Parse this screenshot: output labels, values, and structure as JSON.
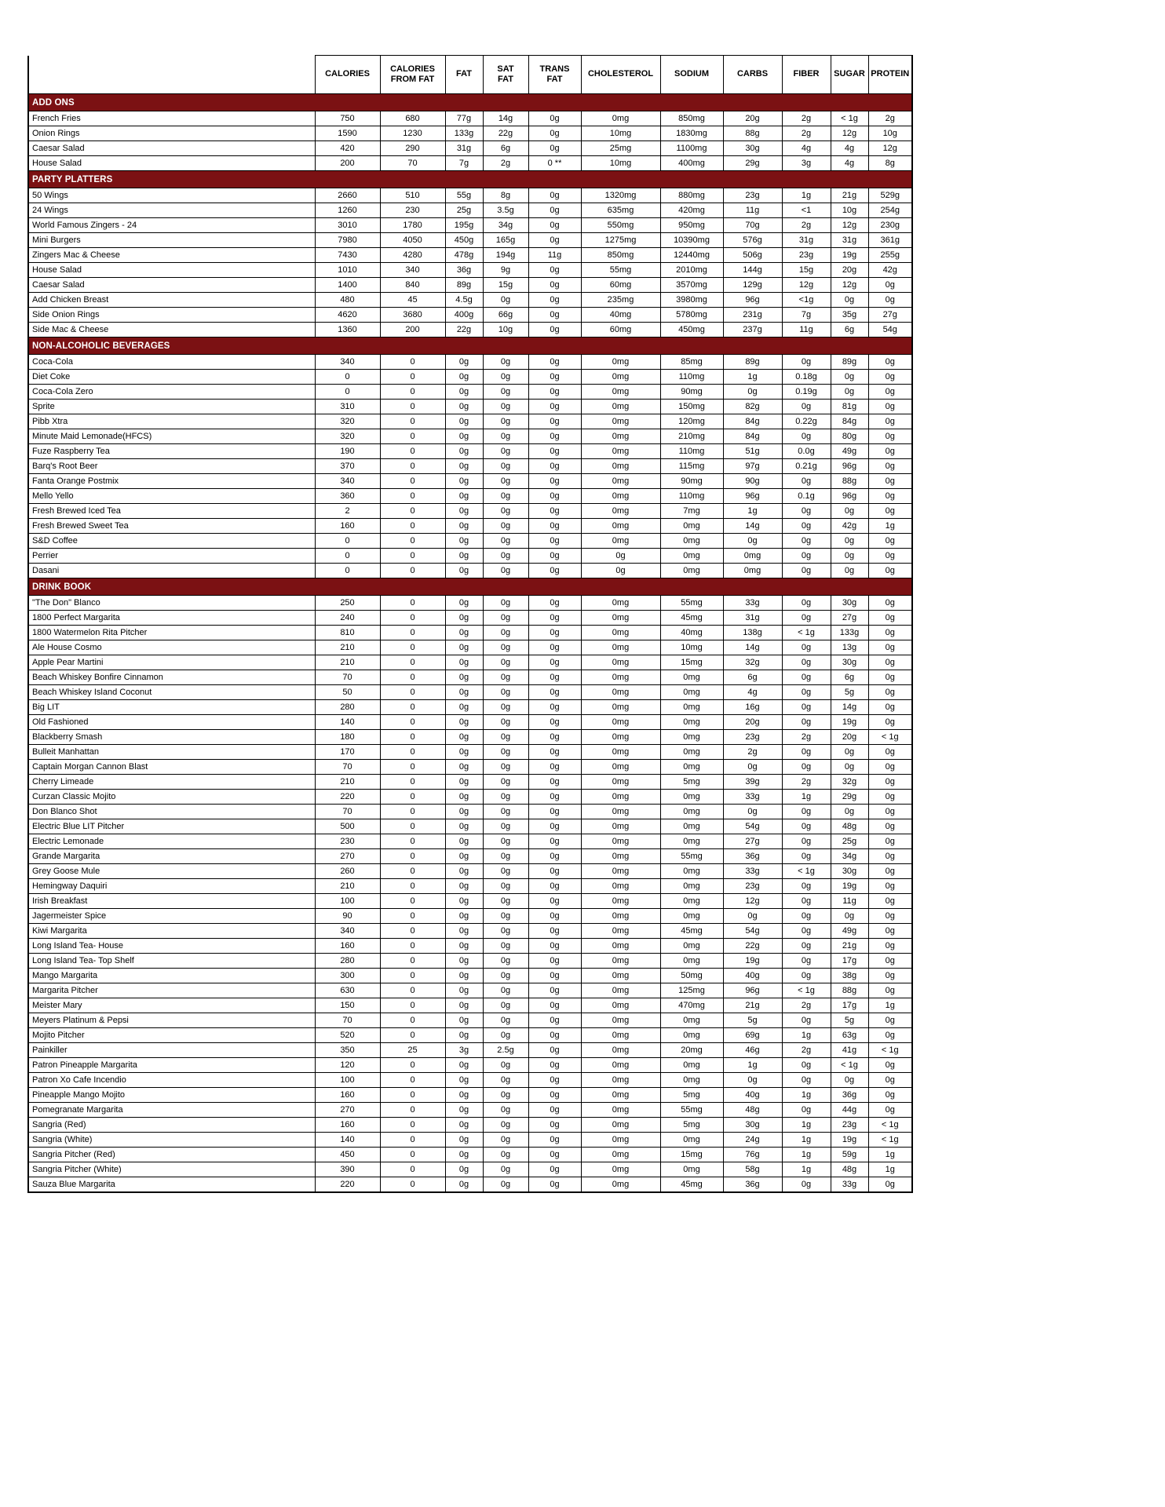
{
  "document": {
    "kind": "restaurant-nutrition-table"
  },
  "colors": {
    "section_banner": "#7b1113",
    "banner_text": "#ffffff",
    "grid": "#000000",
    "background": "#ffffff"
  },
  "table": {
    "columns": [
      "CALORIES",
      "CALORIES\nFROM FAT",
      "FAT",
      "SAT\nFAT",
      "TRANS\nFAT",
      "CHOLESTEROL",
      "SODIUM",
      "CARBS",
      "FIBER",
      "SUGAR",
      "PROTEIN"
    ],
    "sections": [
      {
        "title": "ADD ONS",
        "rows": [
          [
            "French Fries",
            "750",
            "680",
            "77g",
            "14g",
            "0g",
            "0mg",
            "850mg",
            "20g",
            "2g",
            "< 1g",
            "2g"
          ],
          [
            "Onion Rings",
            "1590",
            "1230",
            "133g",
            "22g",
            "0g",
            "10mg",
            "1830mg",
            "88g",
            "2g",
            "12g",
            "10g"
          ],
          [
            "Caesar Salad",
            "420",
            "290",
            "31g",
            "6g",
            "0g",
            "25mg",
            "1100mg",
            "30g",
            "4g",
            "4g",
            "12g"
          ],
          [
            "House Salad",
            "200",
            "70",
            "7g",
            "2g",
            "0 **",
            "10mg",
            "400mg",
            "29g",
            "3g",
            "4g",
            "8g"
          ]
        ]
      },
      {
        "title": "PARTY PLATTERS",
        "rows": [
          [
            "50 Wings",
            "2660",
            "510",
            "55g",
            "8g",
            "0g",
            "1320mg",
            "880mg",
            "23g",
            "1g",
            "21g",
            "529g"
          ],
          [
            "24 Wings",
            "1260",
            "230",
            "25g",
            "3.5g",
            "0g",
            "635mg",
            "420mg",
            "11g",
            "<1",
            "10g",
            "254g"
          ],
          [
            "World Famous Zingers - 24",
            "3010",
            "1780",
            "195g",
            "34g",
            "0g",
            "550mg",
            "950mg",
            "70g",
            "2g",
            "12g",
            "230g"
          ],
          [
            "Mini Burgers",
            "7980",
            "4050",
            "450g",
            "165g",
            "0g",
            "1275mg",
            "10390mg",
            "576g",
            "31g",
            "31g",
            "361g"
          ],
          [
            "Zingers Mac & Cheese",
            "7430",
            "4280",
            "478g",
            "194g",
            "11g",
            "850mg",
            "12440mg",
            "506g",
            "23g",
            "19g",
            "255g"
          ],
          [
            "House Salad",
            "1010",
            "340",
            "36g",
            "9g",
            "0g",
            "55mg",
            "2010mg",
            "144g",
            "15g",
            "20g",
            "42g"
          ],
          [
            "Caesar Salad",
            "1400",
            "840",
            "89g",
            "15g",
            "0g",
            "60mg",
            "3570mg",
            "129g",
            "12g",
            "12g",
            "0g"
          ],
          [
            "Add Chicken Breast",
            "480",
            "45",
            "4.5g",
            "0g",
            "0g",
            "235mg",
            "3980mg",
            "96g",
            "<1g",
            "0g",
            "0g"
          ],
          [
            "Side Onion Rings",
            "4620",
            "3680",
            "400g",
            "66g",
            "0g",
            "40mg",
            "5780mg",
            "231g",
            "7g",
            "35g",
            "27g"
          ],
          [
            "Side Mac & Cheese",
            "1360",
            "200",
            "22g",
            "10g",
            "0g",
            "60mg",
            "450mg",
            "237g",
            "11g",
            "6g",
            "54g"
          ]
        ]
      },
      {
        "title": "NON-ALCOHOLIC BEVERAGES",
        "rows": [
          [
            "Coca-Cola",
            "340",
            "0",
            "0g",
            "0g",
            "0g",
            "0mg",
            "85mg",
            "89g",
            "0g",
            "89g",
            "0g"
          ],
          [
            "Diet Coke",
            "0",
            "0",
            "0g",
            "0g",
            "0g",
            "0mg",
            "110mg",
            "1g",
            "0.18g",
            "0g",
            "0g"
          ],
          [
            "Coca-Cola Zero",
            "0",
            "0",
            "0g",
            "0g",
            "0g",
            "0mg",
            "90mg",
            "0g",
            "0.19g",
            "0g",
            "0g"
          ],
          [
            "Sprite",
            "310",
            "0",
            "0g",
            "0g",
            "0g",
            "0mg",
            "150mg",
            "82g",
            "0g",
            "81g",
            "0g"
          ],
          [
            "Pibb Xtra",
            "320",
            "0",
            "0g",
            "0g",
            "0g",
            "0mg",
            "120mg",
            "84g",
            "0.22g",
            "84g",
            "0g"
          ],
          [
            "Minute Maid Lemonade(HFCS)",
            "320",
            "0",
            "0g",
            "0g",
            "0g",
            "0mg",
            "210mg",
            "84g",
            "0g",
            "80g",
            "0g"
          ],
          [
            "Fuze Raspberry Tea",
            "190",
            "0",
            "0g",
            "0g",
            "0g",
            "0mg",
            "110mg",
            "51g",
            "0.0g",
            "49g",
            "0g"
          ],
          [
            "Barq's Root Beer",
            "370",
            "0",
            "0g",
            "0g",
            "0g",
            "0mg",
            "115mg",
            "97g",
            "0.21g",
            "96g",
            "0g"
          ],
          [
            "Fanta Orange Postmix",
            "340",
            "0",
            "0g",
            "0g",
            "0g",
            "0mg",
            "90mg",
            "90g",
            "0g",
            "88g",
            "0g"
          ],
          [
            "Mello Yello",
            "360",
            "0",
            "0g",
            "0g",
            "0g",
            "0mg",
            "110mg",
            "96g",
            "0.1g",
            "96g",
            "0g"
          ],
          [
            "Fresh Brewed Iced Tea",
            "2",
            "0",
            "0g",
            "0g",
            "0g",
            "0mg",
            "7mg",
            "1g",
            "0g",
            "0g",
            "0g"
          ],
          [
            "Fresh Brewed Sweet Tea",
            "160",
            "0",
            "0g",
            "0g",
            "0g",
            "0mg",
            "0mg",
            "14g",
            "0g",
            "42g",
            "1g"
          ],
          [
            "S&D Coffee",
            "0",
            "0",
            "0g",
            "0g",
            "0g",
            "0mg",
            "0mg",
            "0g",
            "0g",
            "0g",
            "0g"
          ],
          [
            "Perrier",
            "0",
            "0",
            "0g",
            "0g",
            "0g",
            "0g",
            "0mg",
            "0mg",
            "0g",
            "0g",
            "0g"
          ],
          [
            "Dasani",
            "0",
            "0",
            "0g",
            "0g",
            "0g",
            "0g",
            "0mg",
            "0mg",
            "0g",
            "0g",
            "0g"
          ]
        ]
      },
      {
        "title": "DRINK BOOK",
        "rows": [
          [
            "\"The Don\" Blanco",
            "250",
            "0",
            "0g",
            "0g",
            "0g",
            "0mg",
            "55mg",
            "33g",
            "0g",
            "30g",
            "0g"
          ],
          [
            "1800 Perfect Margarita",
            "240",
            "0",
            "0g",
            "0g",
            "0g",
            "0mg",
            "45mg",
            "31g",
            "0g",
            "27g",
            "0g"
          ],
          [
            "1800 Watermelon Rita Pitcher",
            "810",
            "0",
            "0g",
            "0g",
            "0g",
            "0mg",
            "40mg",
            "138g",
            "< 1g",
            "133g",
            "0g"
          ],
          [
            "Ale House Cosmo",
            "210",
            "0",
            "0g",
            "0g",
            "0g",
            "0mg",
            "10mg",
            "14g",
            "0g",
            "13g",
            "0g"
          ],
          [
            "Apple Pear Martini",
            "210",
            "0",
            "0g",
            "0g",
            "0g",
            "0mg",
            "15mg",
            "32g",
            "0g",
            "30g",
            "0g"
          ],
          [
            "Beach Whiskey Bonfire Cinnamon",
            "70",
            "0",
            "0g",
            "0g",
            "0g",
            "0mg",
            "0mg",
            "6g",
            "0g",
            "6g",
            "0g"
          ],
          [
            "Beach Whiskey Island Coconut",
            "50",
            "0",
            "0g",
            "0g",
            "0g",
            "0mg",
            "0mg",
            "4g",
            "0g",
            "5g",
            "0g"
          ],
          [
            "Big LIT",
            "280",
            "0",
            "0g",
            "0g",
            "0g",
            "0mg",
            "0mg",
            "16g",
            "0g",
            "14g",
            "0g"
          ],
          [
            "Old Fashioned",
            "140",
            "0",
            "0g",
            "0g",
            "0g",
            "0mg",
            "0mg",
            "20g",
            "0g",
            "19g",
            "0g"
          ],
          [
            "Blackberry Smash",
            "180",
            "0",
            "0g",
            "0g",
            "0g",
            "0mg",
            "0mg",
            "23g",
            "2g",
            "20g",
            "< 1g"
          ],
          [
            "Bulleit Manhattan",
            "170",
            "0",
            "0g",
            "0g",
            "0g",
            "0mg",
            "0mg",
            "2g",
            "0g",
            "0g",
            "0g"
          ],
          [
            "Captain Morgan Cannon Blast",
            "70",
            "0",
            "0g",
            "0g",
            "0g",
            "0mg",
            "0mg",
            "0g",
            "0g",
            "0g",
            "0g"
          ],
          [
            "Cherry Limeade",
            "210",
            "0",
            "0g",
            "0g",
            "0g",
            "0mg",
            "5mg",
            "39g",
            "2g",
            "32g",
            "0g"
          ],
          [
            "Curzan Classic Mojito",
            "220",
            "0",
            "0g",
            "0g",
            "0g",
            "0mg",
            "0mg",
            "33g",
            "1g",
            "29g",
            "0g"
          ],
          [
            "Don Blanco Shot",
            "70",
            "0",
            "0g",
            "0g",
            "0g",
            "0mg",
            "0mg",
            "0g",
            "0g",
            "0g",
            "0g"
          ],
          [
            "Electric Blue LIT Pitcher",
            "500",
            "0",
            "0g",
            "0g",
            "0g",
            "0mg",
            "0mg",
            "54g",
            "0g",
            "48g",
            "0g"
          ],
          [
            "Electric Lemonade",
            "230",
            "0",
            "0g",
            "0g",
            "0g",
            "0mg",
            "0mg",
            "27g",
            "0g",
            "25g",
            "0g"
          ],
          [
            "Grande Margarita",
            "270",
            "0",
            "0g",
            "0g",
            "0g",
            "0mg",
            "55mg",
            "36g",
            "0g",
            "34g",
            "0g"
          ],
          [
            "Grey Goose Mule",
            "260",
            "0",
            "0g",
            "0g",
            "0g",
            "0mg",
            "0mg",
            "33g",
            "< 1g",
            "30g",
            "0g"
          ],
          [
            "Hemingway Daquiri",
            "210",
            "0",
            "0g",
            "0g",
            "0g",
            "0mg",
            "0mg",
            "23g",
            "0g",
            "19g",
            "0g"
          ],
          [
            "Irish Breakfast",
            "100",
            "0",
            "0g",
            "0g",
            "0g",
            "0mg",
            "0mg",
            "12g",
            "0g",
            "11g",
            "0g"
          ],
          [
            "Jagermeister Spice",
            "90",
            "0",
            "0g",
            "0g",
            "0g",
            "0mg",
            "0mg",
            "0g",
            "0g",
            "0g",
            "0g"
          ],
          [
            "Kiwi Margarita",
            "340",
            "0",
            "0g",
            "0g",
            "0g",
            "0mg",
            "45mg",
            "54g",
            "0g",
            "49g",
            "0g"
          ],
          [
            "Long Island Tea- House",
            "160",
            "0",
            "0g",
            "0g",
            "0g",
            "0mg",
            "0mg",
            "22g",
            "0g",
            "21g",
            "0g"
          ],
          [
            "Long Island Tea- Top Shelf",
            "280",
            "0",
            "0g",
            "0g",
            "0g",
            "0mg",
            "0mg",
            "19g",
            "0g",
            "17g",
            "0g"
          ],
          [
            "Mango Margarita",
            "300",
            "0",
            "0g",
            "0g",
            "0g",
            "0mg",
            "50mg",
            "40g",
            "0g",
            "38g",
            "0g"
          ],
          [
            "Margarita Pitcher",
            "630",
            "0",
            "0g",
            "0g",
            "0g",
            "0mg",
            "125mg",
            "96g",
            "< 1g",
            "88g",
            "0g"
          ],
          [
            "Meister Mary",
            "150",
            "0",
            "0g",
            "0g",
            "0g",
            "0mg",
            "470mg",
            "21g",
            "2g",
            "17g",
            "1g"
          ],
          [
            "Meyers Platinum & Pepsi",
            "70",
            "0",
            "0g",
            "0g",
            "0g",
            "0mg",
            "0mg",
            "5g",
            "0g",
            "5g",
            "0g"
          ],
          [
            "Mojito Pitcher",
            "520",
            "0",
            "0g",
            "0g",
            "0g",
            "0mg",
            "0mg",
            "69g",
            "1g",
            "63g",
            "0g"
          ],
          [
            "Painkiller",
            "350",
            "25",
            "3g",
            "2.5g",
            "0g",
            "0mg",
            "20mg",
            "46g",
            "2g",
            "41g",
            "< 1g"
          ],
          [
            "Patron Pineapple Margarita",
            "120",
            "0",
            "0g",
            "0g",
            "0g",
            "0mg",
            "0mg",
            "1g",
            "0g",
            "< 1g",
            "0g"
          ],
          [
            "Patron Xo Cafe Incendio",
            "100",
            "0",
            "0g",
            "0g",
            "0g",
            "0mg",
            "0mg",
            "0g",
            "0g",
            "0g",
            "0g"
          ],
          [
            "Pineapple Mango Mojito",
            "160",
            "0",
            "0g",
            "0g",
            "0g",
            "0mg",
            "5mg",
            "40g",
            "1g",
            "36g",
            "0g"
          ],
          [
            "Pomegranate Margarita",
            "270",
            "0",
            "0g",
            "0g",
            "0g",
            "0mg",
            "55mg",
            "48g",
            "0g",
            "44g",
            "0g"
          ],
          [
            "Sangria (Red)",
            "160",
            "0",
            "0g",
            "0g",
            "0g",
            "0mg",
            "5mg",
            "30g",
            "1g",
            "23g",
            "< 1g"
          ],
          [
            "Sangria (White)",
            "140",
            "0",
            "0g",
            "0g",
            "0g",
            "0mg",
            "0mg",
            "24g",
            "1g",
            "19g",
            "< 1g"
          ],
          [
            "Sangria Pitcher (Red)",
            "450",
            "0",
            "0g",
            "0g",
            "0g",
            "0mg",
            "15mg",
            "76g",
            "1g",
            "59g",
            "1g"
          ],
          [
            "Sangria Pitcher (White)",
            "390",
            "0",
            "0g",
            "0g",
            "0g",
            "0mg",
            "0mg",
            "58g",
            "1g",
            "48g",
            "1g"
          ],
          [
            "Sauza Blue Margarita",
            "220",
            "0",
            "0g",
            "0g",
            "0g",
            "0mg",
            "45mg",
            "36g",
            "0g",
            "33g",
            "0g"
          ]
        ]
      }
    ]
  }
}
